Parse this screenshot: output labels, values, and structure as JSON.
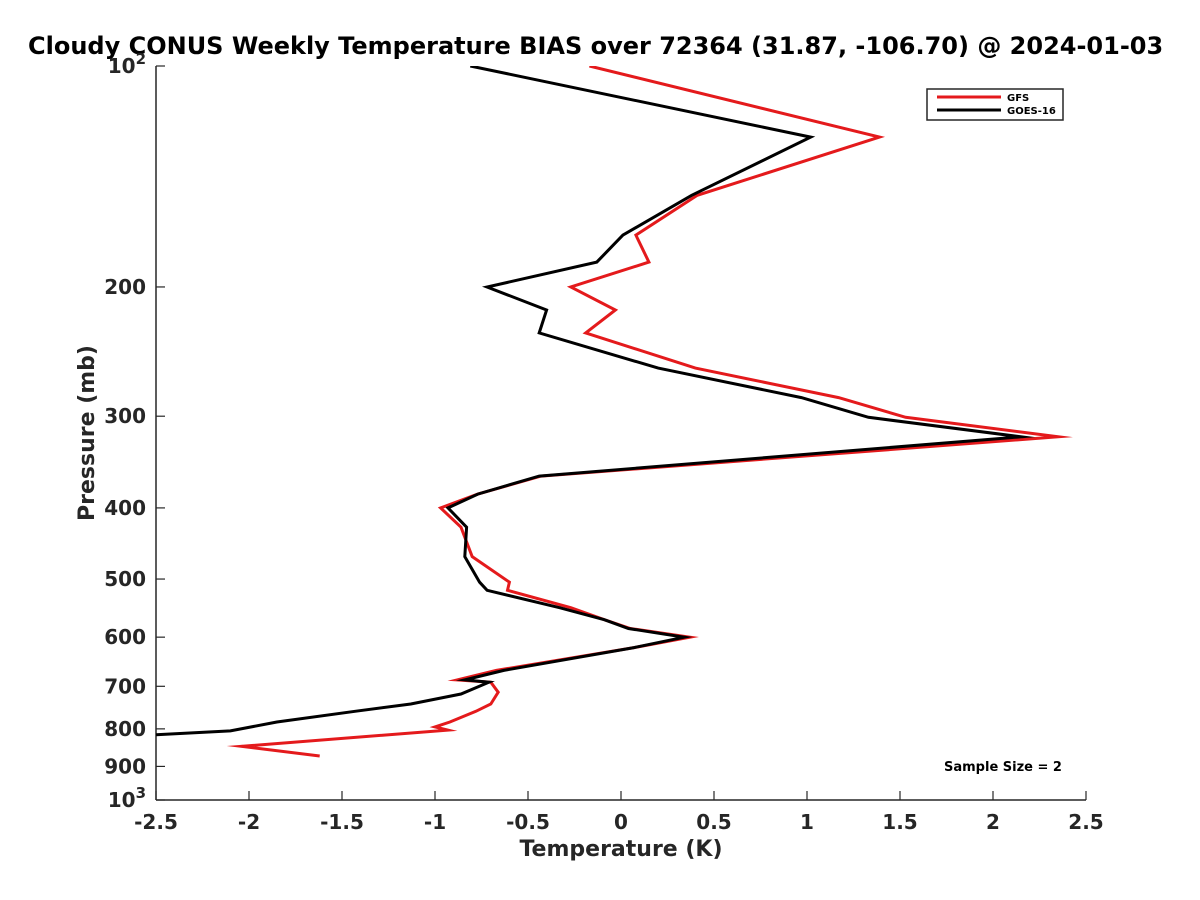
{
  "chart_data": {
    "type": "line",
    "title": "Cloudy CONUS Weekly Temperature BIAS over 72364 (31.87, -106.70) @ 2024-01-03",
    "xlabel": "Temperature (K)",
    "ylabel": "Pressure (mb)",
    "xlim": [
      -2.5,
      2.5
    ],
    "ylim": [
      1000,
      100
    ],
    "y_scale": "log",
    "y_reversed": true,
    "grid": false,
    "legend_position": "top-right",
    "xticks": [
      "-2.5",
      "-2",
      "-1.5",
      "-1",
      "-0.5",
      "0",
      "0.5",
      "1",
      "1.5",
      "2",
      "2.5"
    ],
    "yticks": [
      {
        "value": 100,
        "base": "10",
        "exp": "2"
      },
      {
        "value": 200,
        "label": "200"
      },
      {
        "value": 300,
        "label": "300"
      },
      {
        "value": 400,
        "label": "400"
      },
      {
        "value": 500,
        "label": "500"
      },
      {
        "value": 600,
        "label": "600"
      },
      {
        "value": 700,
        "label": "700"
      },
      {
        "value": 800,
        "label": "800"
      },
      {
        "value": 900,
        "label": "900"
      },
      {
        "value": 1000,
        "base": "10",
        "exp": "3"
      }
    ],
    "series": [
      {
        "name": "GFS",
        "color": "#e41a1c",
        "points": [
          [
            -0.17,
            100
          ],
          [
            1.39,
            125
          ],
          [
            0.41,
            150
          ],
          [
            0.08,
            170
          ],
          [
            0.15,
            185
          ],
          [
            -0.27,
            200
          ],
          [
            -0.03,
            215
          ],
          [
            -0.19,
            231
          ],
          [
            0.4,
            258
          ],
          [
            1.17,
            283
          ],
          [
            1.53,
            301
          ],
          [
            2.35,
            320
          ],
          [
            -0.43,
            362
          ],
          [
            -0.77,
            383
          ],
          [
            -0.97,
            400
          ],
          [
            -0.86,
            425
          ],
          [
            -0.8,
            466
          ],
          [
            -0.6,
            505
          ],
          [
            -0.61,
            518
          ],
          [
            -0.27,
            547
          ],
          [
            -0.09,
            568
          ],
          [
            0.05,
            584
          ],
          [
            0.37,
            600
          ],
          [
            0.07,
            620
          ],
          [
            -0.67,
            666
          ],
          [
            -0.88,
            686
          ],
          [
            -0.7,
            691
          ],
          [
            -0.66,
            713
          ],
          [
            -0.7,
            740
          ],
          [
            -0.78,
            757
          ],
          [
            -0.92,
            783
          ],
          [
            -1.0,
            795
          ],
          [
            -0.93,
            803
          ],
          [
            -2.04,
            845
          ],
          [
            -1.62,
            871
          ]
        ]
      },
      {
        "name": "GOES-16",
        "color": "#000000",
        "points": [
          [
            -0.81,
            100
          ],
          [
            1.02,
            125
          ],
          [
            0.38,
            150
          ],
          [
            0.01,
            170
          ],
          [
            -0.13,
            185
          ],
          [
            -0.72,
            200
          ],
          [
            -0.4,
            215
          ],
          [
            -0.44,
            231
          ],
          [
            0.2,
            258
          ],
          [
            0.97,
            283
          ],
          [
            1.33,
            301
          ],
          [
            2.15,
            320
          ],
          [
            -0.44,
            362
          ],
          [
            -0.77,
            383
          ],
          [
            -0.93,
            400
          ],
          [
            -0.83,
            425
          ],
          [
            -0.84,
            466
          ],
          [
            -0.76,
            505
          ],
          [
            -0.72,
            518
          ],
          [
            -0.33,
            547
          ],
          [
            -0.09,
            568
          ],
          [
            0.04,
            584
          ],
          [
            0.34,
            600
          ],
          [
            0.07,
            620
          ],
          [
            -0.63,
            666
          ],
          [
            -0.84,
            686
          ],
          [
            -0.71,
            691
          ],
          [
            -0.86,
            717
          ],
          [
            -1.13,
            740
          ],
          [
            -1.43,
            757
          ],
          [
            -1.85,
            783
          ],
          [
            -2.1,
            805
          ],
          [
            -2.5,
            815
          ]
        ]
      }
    ],
    "annotation": "Sample Size = 2"
  }
}
